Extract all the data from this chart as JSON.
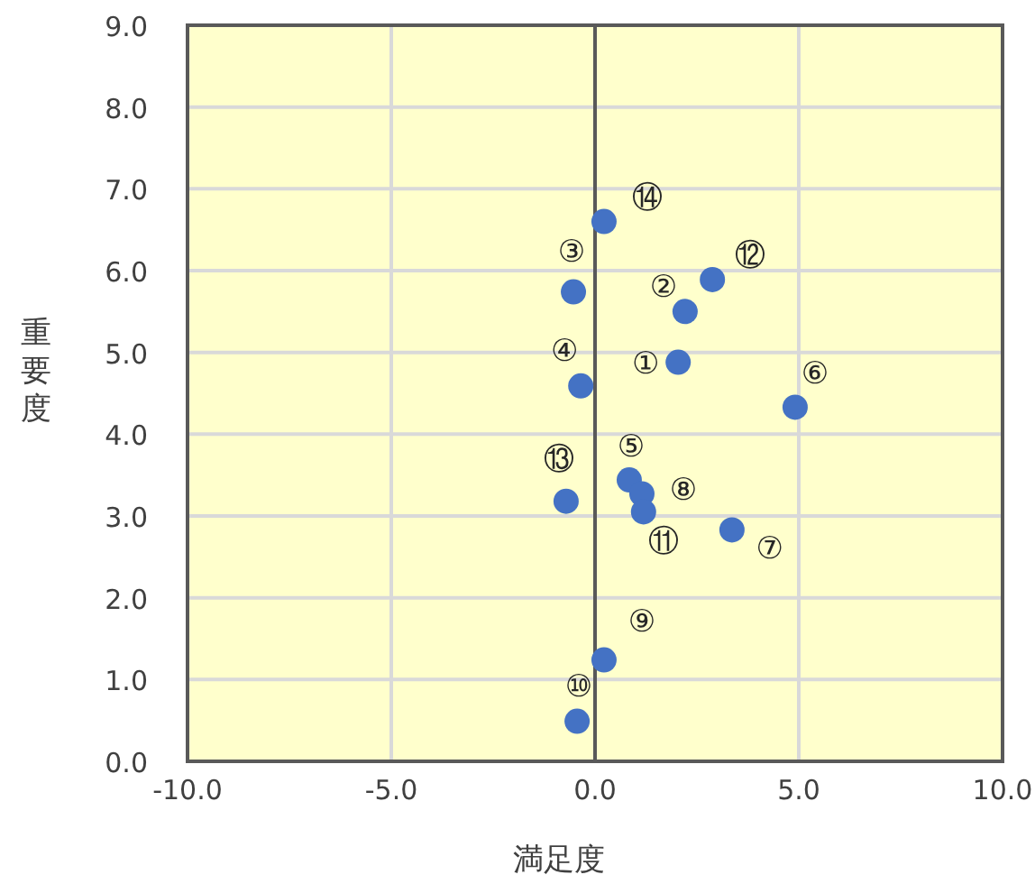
{
  "chart_data": {
    "type": "scatter",
    "xlabel": "満足度",
    "ylabel": "重要度",
    "color": "#4472c4",
    "marker": "circle",
    "grid": true,
    "x": [
      2.04,
      2.21,
      -0.53,
      -0.35,
      0.84,
      4.91,
      3.36,
      1.15,
      0.22,
      -0.44,
      1.19,
      2.88,
      -0.71,
      0.22
    ],
    "values": [
      4.88,
      5.5,
      5.74,
      4.59,
      3.44,
      4.33,
      2.83,
      3.27,
      1.24,
      0.49,
      3.05,
      5.89,
      3.18,
      6.6
    ],
    "xlim": [
      -10,
      10
    ],
    "ylim": [
      0,
      9
    ],
    "xticks": [
      {
        "value": -10,
        "label": "-10.0"
      },
      {
        "value": -5,
        "label": "-5.0"
      },
      {
        "value": 0,
        "label": "0.0"
      },
      {
        "value": 5,
        "label": "5.0"
      },
      {
        "value": 10,
        "label": "10.0"
      }
    ],
    "yticks": [
      {
        "value": 0,
        "label": "0.0"
      },
      {
        "value": 1,
        "label": "1.0"
      },
      {
        "value": 2,
        "label": "2.0"
      },
      {
        "value": 3,
        "label": "3.0"
      },
      {
        "value": 4,
        "label": "4.0"
      },
      {
        "value": 5,
        "label": "5.0"
      },
      {
        "value": 6,
        "label": "6.0"
      },
      {
        "value": 7,
        "label": "7.0"
      },
      {
        "value": 8,
        "label": "8.0"
      },
      {
        "value": 9,
        "label": "9.0"
      }
    ],
    "ref_lines": [
      {
        "axis": "x",
        "value": 0,
        "color": "#595959"
      }
    ],
    "annotations": [
      {
        "text": "①",
        "x": 2.04,
        "y": 4.88
      },
      {
        "text": "②",
        "x": 2.21,
        "y": 5.5
      },
      {
        "text": "③",
        "x": -0.53,
        "y": 5.74
      },
      {
        "text": "④",
        "x": -0.35,
        "y": 4.59
      },
      {
        "text": "⑤",
        "x": 0.84,
        "y": 3.44
      },
      {
        "text": "⑥",
        "x": 4.91,
        "y": 4.33
      },
      {
        "text": "⑦",
        "x": 3.36,
        "y": 2.83
      },
      {
        "text": "⑧",
        "x": 1.15,
        "y": 3.27
      },
      {
        "text": "⑨",
        "x": 0.22,
        "y": 1.24
      },
      {
        "text": "⑩",
        "x": -0.44,
        "y": 0.49
      },
      {
        "text": "⑪",
        "x": 1.19,
        "y": 3.05
      },
      {
        "text": "⑫",
        "x": 2.88,
        "y": 5.89
      },
      {
        "text": "⑬",
        "x": -0.71,
        "y": 3.18
      },
      {
        "text": "⑭",
        "x": 0.22,
        "y": 6.6
      }
    ]
  }
}
